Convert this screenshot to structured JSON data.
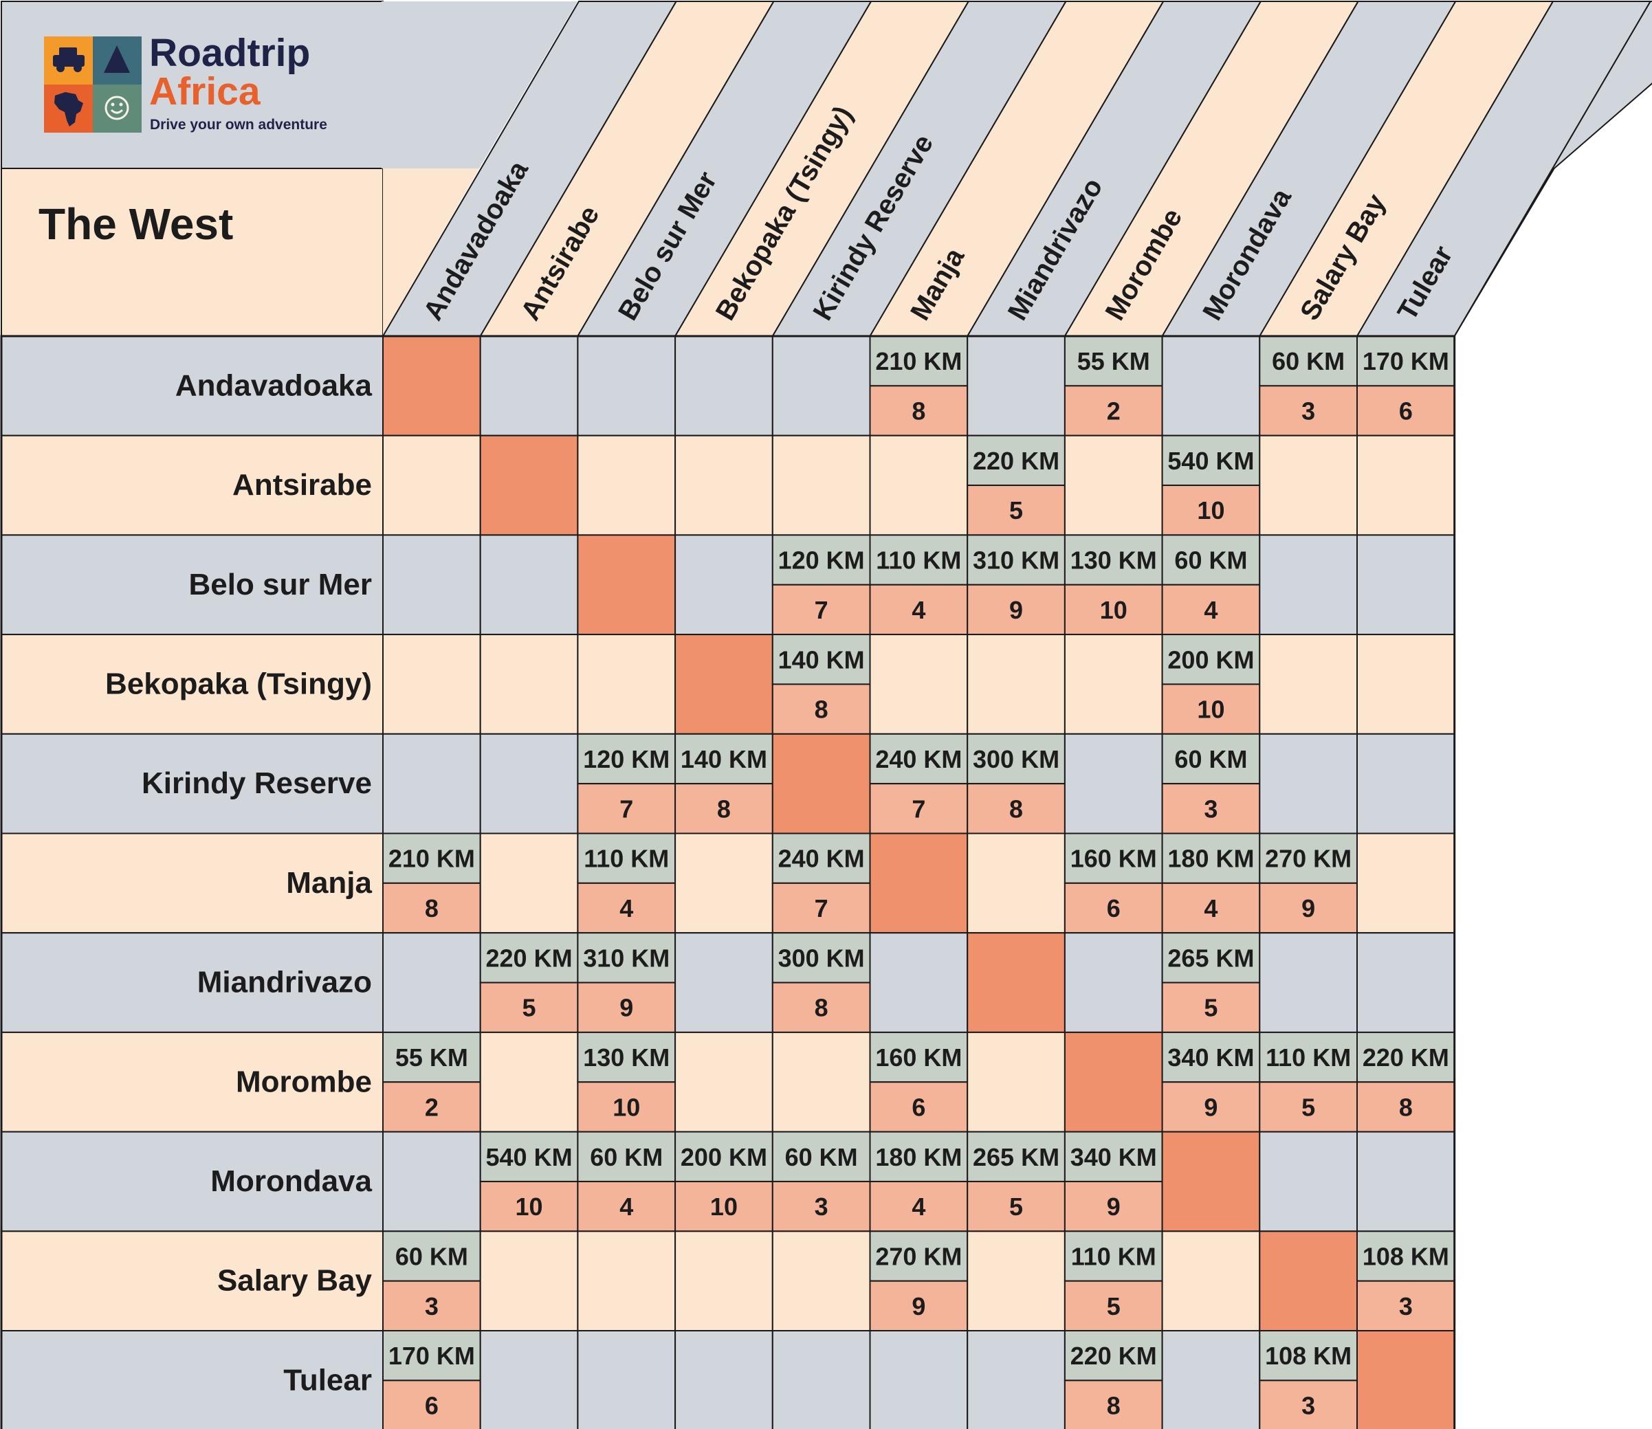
{
  "brand": {
    "name_line1": "Roadtrip",
    "name_line2": "Africa",
    "tagline": "Drive your own adventure",
    "logo_icons": [
      "car-icon",
      "tent-icon",
      "africa-map-icon",
      "smiley-icon"
    ]
  },
  "table_title": "The West",
  "colors": {
    "row_blue": "#D1D5DC",
    "row_cream": "#FDE6D0",
    "distance_cell": "#C7D0C7",
    "time_cell": "#F4B49A",
    "diagonal": "#EF916C",
    "border": "#1a1a1a",
    "text": "#1c1c1c",
    "brand_navy": "#1f2348",
    "brand_orange": "#e8602c"
  },
  "chart_data": {
    "type": "table",
    "title": "The West",
    "locations": [
      "Andavadoaka",
      "Antsirabe",
      "Belo sur Mer",
      "Bekopaka (Tsingy)",
      "Kirindy Reserve",
      "Manja",
      "Miandrivazo",
      "Morombe",
      "Morondava",
      "Salary Bay",
      "Tulear"
    ],
    "routes": [
      {
        "from": "Andavadoaka",
        "to": "Manja",
        "distance": "210 KM",
        "time": "8"
      },
      {
        "from": "Andavadoaka",
        "to": "Morombe",
        "distance": "55 KM",
        "time": "2"
      },
      {
        "from": "Andavadoaka",
        "to": "Salary Bay",
        "distance": "60 KM",
        "time": "3"
      },
      {
        "from": "Andavadoaka",
        "to": "Tulear",
        "distance": "170 KM",
        "time": "6"
      },
      {
        "from": "Antsirabe",
        "to": "Miandrivazo",
        "distance": "220 KM",
        "time": "5"
      },
      {
        "from": "Antsirabe",
        "to": "Morondava",
        "distance": "540 KM",
        "time": "10"
      },
      {
        "from": "Belo sur Mer",
        "to": "Kirindy Reserve",
        "distance": "120 KM",
        "time": "7"
      },
      {
        "from": "Belo sur Mer",
        "to": "Manja",
        "distance": "110 KM",
        "time": "4"
      },
      {
        "from": "Belo sur Mer",
        "to": "Miandrivazo",
        "distance": "310 KM",
        "time": "9"
      },
      {
        "from": "Belo sur Mer",
        "to": "Morombe",
        "distance": "130 KM",
        "time": "10"
      },
      {
        "from": "Belo sur Mer",
        "to": "Morondava",
        "distance": "60 KM",
        "time": "4"
      },
      {
        "from": "Bekopaka (Tsingy)",
        "to": "Kirindy Reserve",
        "distance": "140 KM",
        "time": "8"
      },
      {
        "from": "Bekopaka (Tsingy)",
        "to": "Morondava",
        "distance": "200 KM",
        "time": "10"
      },
      {
        "from": "Kirindy Reserve",
        "to": "Manja",
        "distance": "240 KM",
        "time": "7"
      },
      {
        "from": "Kirindy Reserve",
        "to": "Miandrivazo",
        "distance": "300 KM",
        "time": "8"
      },
      {
        "from": "Kirindy Reserve",
        "to": "Morondava",
        "distance": "60 KM",
        "time": "3"
      },
      {
        "from": "Manja",
        "to": "Morombe",
        "distance": "160 KM",
        "time": "6"
      },
      {
        "from": "Manja",
        "to": "Morondava",
        "distance": "180 KM",
        "time": "4"
      },
      {
        "from": "Manja",
        "to": "Salary Bay",
        "distance": "270 KM",
        "time": "9"
      },
      {
        "from": "Miandrivazo",
        "to": "Morondava",
        "distance": "265 KM",
        "time": "5"
      },
      {
        "from": "Morombe",
        "to": "Morondava",
        "distance": "340 KM",
        "time": "9"
      },
      {
        "from": "Morombe",
        "to": "Salary Bay",
        "distance": "110 KM",
        "time": "5"
      },
      {
        "from": "Morombe",
        "to": "Tulear",
        "distance": "220 KM",
        "time": "8"
      },
      {
        "from": "Salary Bay",
        "to": "Tulear",
        "distance": "108 KM",
        "time": "3"
      }
    ]
  }
}
